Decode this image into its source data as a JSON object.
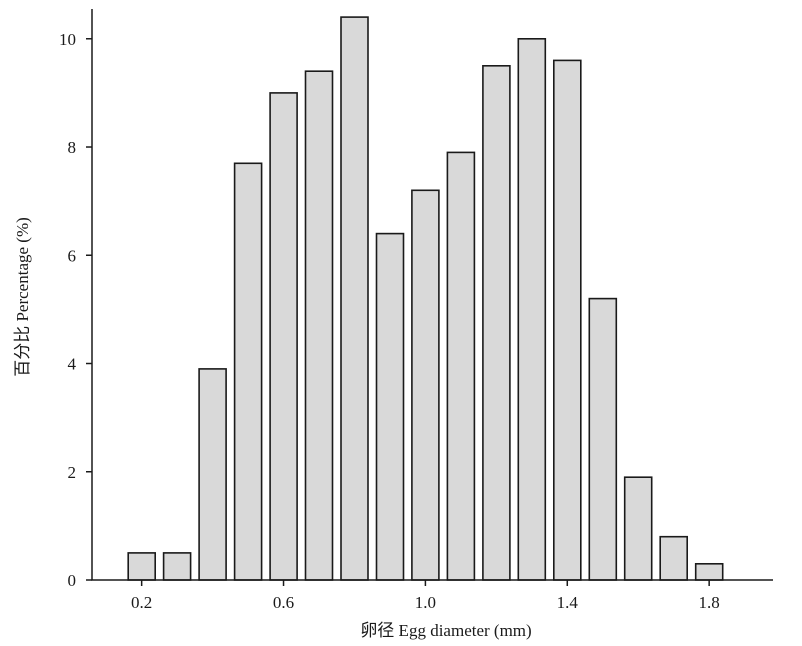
{
  "chart_data": {
    "type": "bar",
    "xlabel": "卵径 Egg diameter (mm)",
    "ylabel": "百分比 Percentage (%)",
    "x": [
      0.2,
      0.3,
      0.4,
      0.5,
      0.6,
      0.7,
      0.8,
      0.9,
      1.0,
      1.1,
      1.2,
      1.3,
      1.4,
      1.5,
      1.6,
      1.7,
      1.8
    ],
    "values": [
      0.5,
      0.5,
      3.9,
      7.7,
      9.0,
      9.4,
      10.4,
      6.4,
      7.2,
      7.9,
      9.5,
      10.0,
      9.6,
      5.2,
      1.9,
      0.8,
      0.3
    ],
    "xticks": [
      "0.2",
      "0.6",
      "1.0",
      "1.4",
      "1.8"
    ],
    "xtick_values": [
      0.2,
      0.6,
      1.0,
      1.4,
      1.8
    ],
    "yticks": [
      "0",
      "2",
      "4",
      "6",
      "8",
      "10"
    ],
    "ytick_values": [
      0,
      2,
      4,
      6,
      8,
      10
    ],
    "xlim": [
      0.06,
      1.98
    ],
    "ylim": [
      0,
      10.55
    ],
    "grid": false,
    "bar_fill": "#d9d9d9",
    "bar_stroke": "#1a1a1a"
  }
}
